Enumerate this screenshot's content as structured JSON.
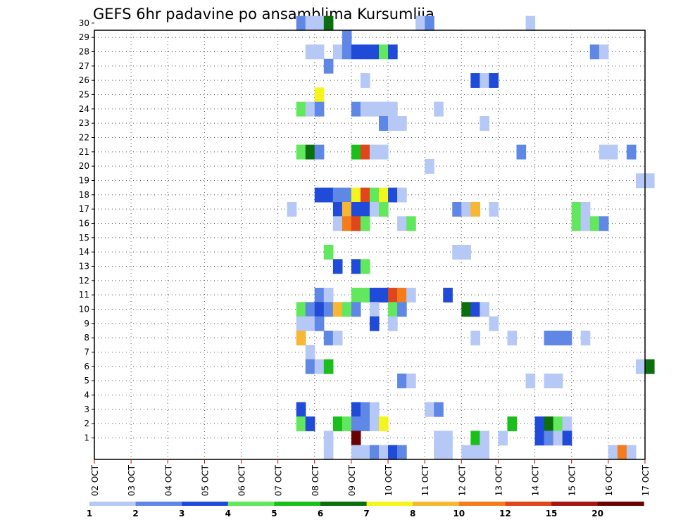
{
  "chart_data": {
    "type": "heatmap",
    "title": "GEFS 6hr padavine po ansamblima Kursumlija",
    "x_ticks": [
      "02 OCT",
      "03 OCT",
      "04 OCT",
      "05 OCT",
      "06 OCT",
      "07 OCT",
      "08 OCT",
      "09 OCT",
      "10 OCT",
      "11 OCT",
      "12 OCT",
      "13 OCT",
      "14 OCT",
      "15 OCT",
      "16 OCT",
      "17 OCT"
    ],
    "y_ticks": [
      1,
      2,
      3,
      4,
      5,
      6,
      7,
      8,
      9,
      10,
      11,
      12,
      13,
      14,
      15,
      16,
      17,
      18,
      19,
      20,
      21,
      22,
      23,
      24,
      25,
      26,
      27,
      28,
      29,
      30
    ],
    "color_scale": {
      "labels": [
        "1",
        "2",
        "3",
        "4",
        "5",
        "6",
        "7",
        "8",
        "10",
        "12",
        "15",
        "20"
      ],
      "colors": [
        "#b6c8f5",
        "#5f88e6",
        "#1f4bd8",
        "#62e85c",
        "#1bbf1b",
        "#0d6e0d",
        "#f5f51e",
        "#f7b733",
        "#f47c1a",
        "#e0451c",
        "#a5160f",
        "#6b0202"
      ]
    },
    "grid": true,
    "cells": [
      {
        "m": 30,
        "i": [
          [
            22,
            1
          ],
          [
            23,
            0
          ],
          [
            24,
            0
          ],
          [
            25,
            5
          ],
          [
            35,
            0
          ],
          [
            36,
            1
          ],
          [
            47,
            0
          ]
        ]
      },
      {
        "m": 29,
        "i": [
          [
            27,
            1
          ]
        ]
      },
      {
        "m": 28,
        "i": [
          [
            23,
            0
          ],
          [
            24,
            0
          ],
          [
            26,
            0
          ],
          [
            27,
            1
          ],
          [
            28,
            2
          ],
          [
            29,
            2
          ],
          [
            30,
            2
          ],
          [
            31,
            3
          ],
          [
            32,
            2
          ],
          [
            54,
            1
          ],
          [
            55,
            0
          ]
        ]
      },
      {
        "m": 27,
        "i": [
          [
            25,
            1
          ]
        ]
      },
      {
        "m": 26,
        "i": [
          [
            29,
            0
          ],
          [
            41,
            2
          ],
          [
            42,
            0
          ],
          [
            43,
            2
          ]
        ]
      },
      {
        "m": 25,
        "i": [
          [
            24,
            6
          ]
        ]
      },
      {
        "m": 24,
        "i": [
          [
            22,
            3
          ],
          [
            23,
            0
          ],
          [
            24,
            1
          ],
          [
            28,
            1
          ],
          [
            29,
            0
          ],
          [
            30,
            0
          ],
          [
            31,
            0
          ],
          [
            32,
            0
          ],
          [
            37,
            0
          ]
        ]
      },
      {
        "m": 23,
        "i": [
          [
            31,
            1
          ],
          [
            32,
            0
          ],
          [
            33,
            0
          ],
          [
            42,
            0
          ]
        ]
      },
      {
        "m": 21,
        "i": [
          [
            22,
            3
          ],
          [
            23,
            5
          ],
          [
            24,
            1
          ],
          [
            28,
            4
          ],
          [
            29,
            9
          ],
          [
            30,
            0
          ],
          [
            31,
            0
          ],
          [
            46,
            1
          ],
          [
            55,
            0
          ],
          [
            56,
            0
          ],
          [
            58,
            1
          ]
        ]
      },
      {
        "m": 20,
        "i": [
          [
            36,
            0
          ]
        ]
      },
      {
        "m": 19,
        "i": [
          [
            59,
            0
          ],
          [
            60,
            0
          ]
        ]
      },
      {
        "m": 18,
        "i": [
          [
            24,
            2
          ],
          [
            25,
            2
          ],
          [
            26,
            1
          ],
          [
            27,
            1
          ],
          [
            28,
            6
          ],
          [
            29,
            9
          ],
          [
            30,
            3
          ],
          [
            31,
            6
          ],
          [
            32,
            2
          ],
          [
            33,
            0
          ]
        ]
      },
      {
        "m": 17,
        "i": [
          [
            21,
            0
          ],
          [
            26,
            2
          ],
          [
            27,
            7
          ],
          [
            28,
            2
          ],
          [
            29,
            2
          ],
          [
            30,
            0
          ],
          [
            31,
            3
          ],
          [
            39,
            1
          ],
          [
            40,
            0
          ],
          [
            41,
            7
          ],
          [
            43,
            0
          ],
          [
            52,
            3
          ],
          [
            53,
            0
          ]
        ]
      },
      {
        "m": 16,
        "i": [
          [
            26,
            0
          ],
          [
            27,
            8
          ],
          [
            28,
            9
          ],
          [
            29,
            3
          ],
          [
            33,
            0
          ],
          [
            34,
            3
          ],
          [
            52,
            3
          ],
          [
            53,
            0
          ],
          [
            54,
            3
          ],
          [
            55,
            1
          ]
        ]
      },
      {
        "m": 14,
        "i": [
          [
            25,
            3
          ],
          [
            39,
            0
          ],
          [
            40,
            0
          ]
        ]
      },
      {
        "m": 13,
        "i": [
          [
            26,
            2
          ],
          [
            28,
            2
          ],
          [
            29,
            3
          ]
        ]
      },
      {
        "m": 11,
        "i": [
          [
            24,
            1
          ],
          [
            25,
            0
          ],
          [
            28,
            3
          ],
          [
            29,
            3
          ],
          [
            30,
            2
          ],
          [
            31,
            2
          ],
          [
            32,
            9
          ],
          [
            33,
            8
          ],
          [
            34,
            0
          ],
          [
            38,
            2
          ]
        ]
      },
      {
        "m": 10,
        "i": [
          [
            22,
            3
          ],
          [
            23,
            1
          ],
          [
            24,
            2
          ],
          [
            25,
            1
          ],
          [
            26,
            7
          ],
          [
            27,
            3
          ],
          [
            28,
            1
          ],
          [
            30,
            0
          ],
          [
            32,
            3
          ],
          [
            33,
            1
          ],
          [
            40,
            5
          ],
          [
            41,
            2
          ],
          [
            42,
            0
          ]
        ]
      },
      {
        "m": 9,
        "i": [
          [
            22,
            0
          ],
          [
            23,
            0
          ],
          [
            24,
            1
          ],
          [
            30,
            2
          ],
          [
            32,
            0
          ],
          [
            43,
            0
          ]
        ]
      },
      {
        "m": 8,
        "i": [
          [
            22,
            7
          ],
          [
            25,
            1
          ],
          [
            26,
            0
          ],
          [
            41,
            0
          ],
          [
            45,
            0
          ],
          [
            49,
            1
          ],
          [
            50,
            1
          ],
          [
            51,
            1
          ],
          [
            53,
            0
          ]
        ]
      },
      {
        "m": 7,
        "i": [
          [
            23,
            0
          ]
        ]
      },
      {
        "m": 6,
        "i": [
          [
            23,
            1
          ],
          [
            24,
            0
          ],
          [
            25,
            4
          ],
          [
            59,
            0
          ],
          [
            60,
            5
          ]
        ]
      },
      {
        "m": 5,
        "i": [
          [
            33,
            1
          ],
          [
            34,
            0
          ],
          [
            47,
            0
          ],
          [
            49,
            0
          ],
          [
            50,
            0
          ]
        ]
      },
      {
        "m": 3,
        "i": [
          [
            22,
            2
          ],
          [
            28,
            2
          ],
          [
            29,
            1
          ],
          [
            30,
            0
          ],
          [
            36,
            0
          ],
          [
            37,
            1
          ]
        ]
      },
      {
        "m": 2,
        "i": [
          [
            22,
            3
          ],
          [
            23,
            2
          ],
          [
            26,
            4
          ],
          [
            27,
            3
          ],
          [
            28,
            1
          ],
          [
            29,
            1
          ],
          [
            30,
            0
          ],
          [
            31,
            6
          ],
          [
            45,
            4
          ],
          [
            48,
            2
          ],
          [
            49,
            5
          ],
          [
            50,
            3
          ],
          [
            51,
            0
          ]
        ]
      },
      {
        "m": 1,
        "i": [
          [
            25,
            0
          ],
          [
            28,
            11
          ],
          [
            37,
            0
          ],
          [
            38,
            0
          ],
          [
            41,
            4
          ],
          [
            42,
            0
          ],
          [
            44,
            0
          ],
          [
            48,
            2
          ],
          [
            49,
            1
          ],
          [
            50,
            0
          ],
          [
            51,
            2
          ]
        ]
      },
      {
        "m": 0,
        "i": [
          [
            25,
            0
          ],
          [
            28,
            0
          ],
          [
            29,
            0
          ],
          [
            30,
            1
          ],
          [
            31,
            0
          ],
          [
            32,
            2
          ],
          [
            33,
            1
          ],
          [
            37,
            0
          ],
          [
            38,
            0
          ],
          [
            40,
            0
          ],
          [
            41,
            0
          ],
          [
            42,
            0
          ],
          [
            56,
            0
          ],
          [
            57,
            8
          ],
          [
            58,
            0
          ]
        ]
      }
    ]
  }
}
